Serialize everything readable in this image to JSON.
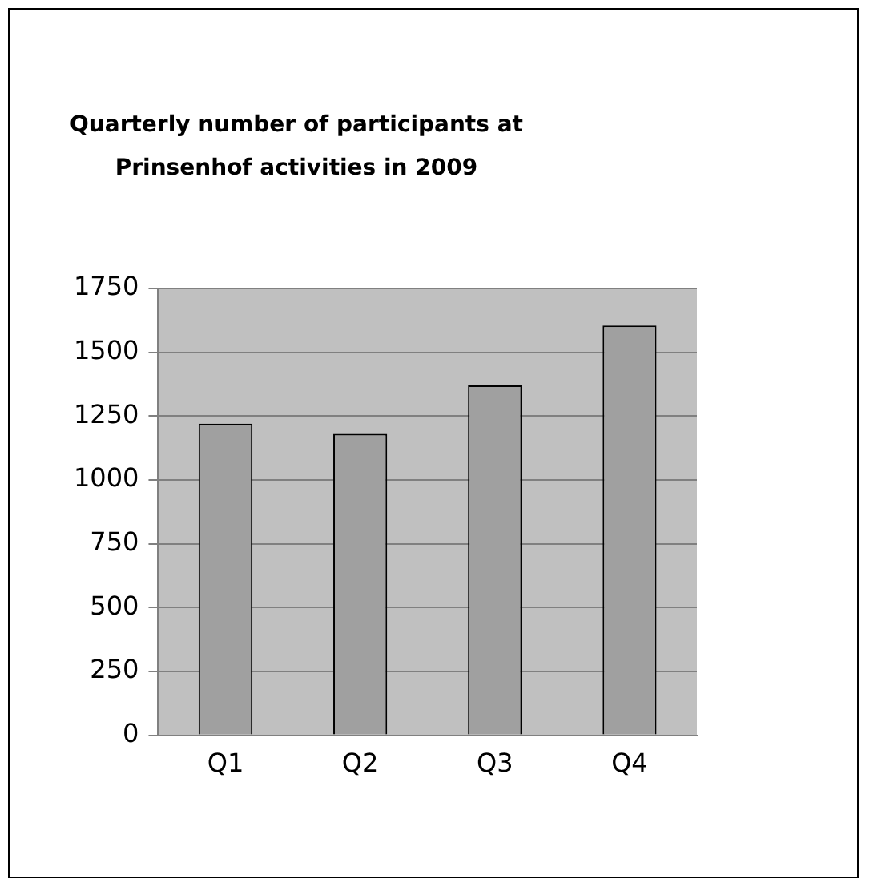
{
  "chart_data": {
    "type": "bar",
    "title": "Quarterly number of participants at Prinsenhof activities in 2009",
    "categories": [
      "Q1",
      "Q2",
      "Q3",
      "Q4"
    ],
    "values": [
      1220,
      1180,
      1370,
      1605
    ],
    "color": "#a0a0a0",
    "ylim": [
      0,
      1750
    ],
    "yticks": [
      0,
      250,
      500,
      750,
      1000,
      1250,
      1500,
      1750
    ],
    "grid": "y",
    "legend": false
  }
}
